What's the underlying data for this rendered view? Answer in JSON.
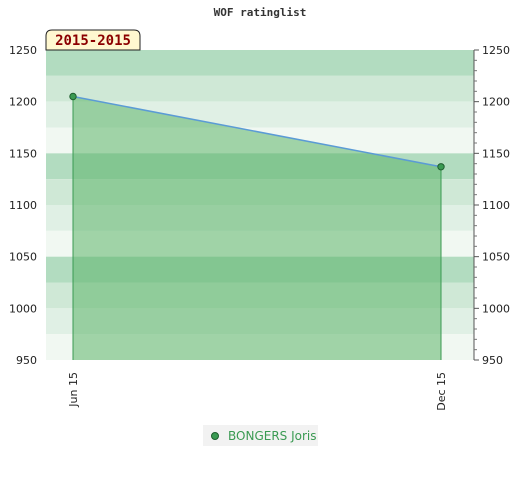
{
  "chart_data": {
    "type": "area",
    "title": "WOF ratinglist",
    "period_label": "2015-2015",
    "xlabel": "",
    "ylabel": "",
    "categories": [
      "Jun 15",
      "Dec 15"
    ],
    "series": [
      {
        "name": "BONGERS Joris",
        "values": [
          1205,
          1137
        ]
      }
    ],
    "ylim": [
      950,
      1250
    ],
    "y_ticks": [
      950,
      1000,
      1050,
      1100,
      1150,
      1200,
      1250
    ],
    "grid": true,
    "legend_position": "bottom",
    "colors": {
      "line": "#5b9bd5",
      "area": "#5cb56a",
      "marker": "#3a9a52",
      "legend_text": "#3a9a52",
      "band_dark": "#b2dcc0",
      "band_mid": "#cfe8d6",
      "band_light": "#e0f0e5",
      "band_lightest": "#f1f8f2",
      "period_box_fill": "#fff8d0",
      "period_text": "#8b0000"
    }
  }
}
